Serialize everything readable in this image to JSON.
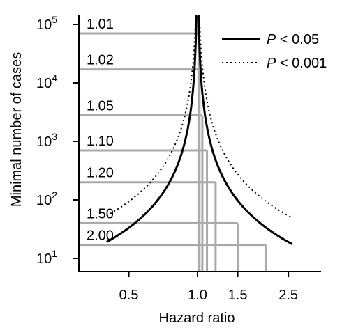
{
  "chart_data": {
    "type": "line",
    "xlabel": "Hazard ratio",
    "ylabel": "Minimal number of cases",
    "x_scale": "log",
    "y_scale": "log",
    "xlim": [
      0.4,
      2.6
    ],
    "ylim": [
      1,
      100000
    ],
    "x_ticks": [
      {
        "value": 0.5,
        "label": "0.5"
      },
      {
        "value": 1.0,
        "label": "1.0"
      },
      {
        "value": 1.5,
        "label": "1.5"
      },
      {
        "value": 2.5,
        "label": "2.5"
      }
    ],
    "y_ticks": [
      {
        "value": 10,
        "base": "10",
        "exp": "1"
      },
      {
        "value": 100,
        "base": "10",
        "exp": "2"
      },
      {
        "value": 1000,
        "base": "10",
        "exp": "3"
      },
      {
        "value": 10000,
        "base": "10",
        "exp": "4"
      },
      {
        "value": 100000,
        "base": "10",
        "exp": "5"
      }
    ],
    "legend_position": "top-right",
    "series": [
      {
        "name_prefix": "P",
        "name_suffix": " < 0.05",
        "style": "solid",
        "color": "#000000",
        "k": 16
      },
      {
        "name_prefix": "P",
        "name_suffix": " < 0.001",
        "style": "dotted",
        "color": "#000000",
        "k": 45
      }
    ],
    "reference_lines": [
      {
        "label": "1.01",
        "hr": 1.01,
        "cases": 70000
      },
      {
        "label": "1.02",
        "hr": 1.02,
        "cases": 17000
      },
      {
        "label": "1.05",
        "hr": 1.05,
        "cases": 2800
      },
      {
        "label": "1.10",
        "hr": 1.1,
        "cases": 700
      },
      {
        "label": "1.20",
        "hr": 1.2,
        "cases": 200
      },
      {
        "label": "1.50",
        "hr": 1.5,
        "cases": 40
      },
      {
        "label": "2.00",
        "hr": 2.0,
        "cases": 17
      }
    ],
    "reference_color": "#aaaaaa"
  }
}
